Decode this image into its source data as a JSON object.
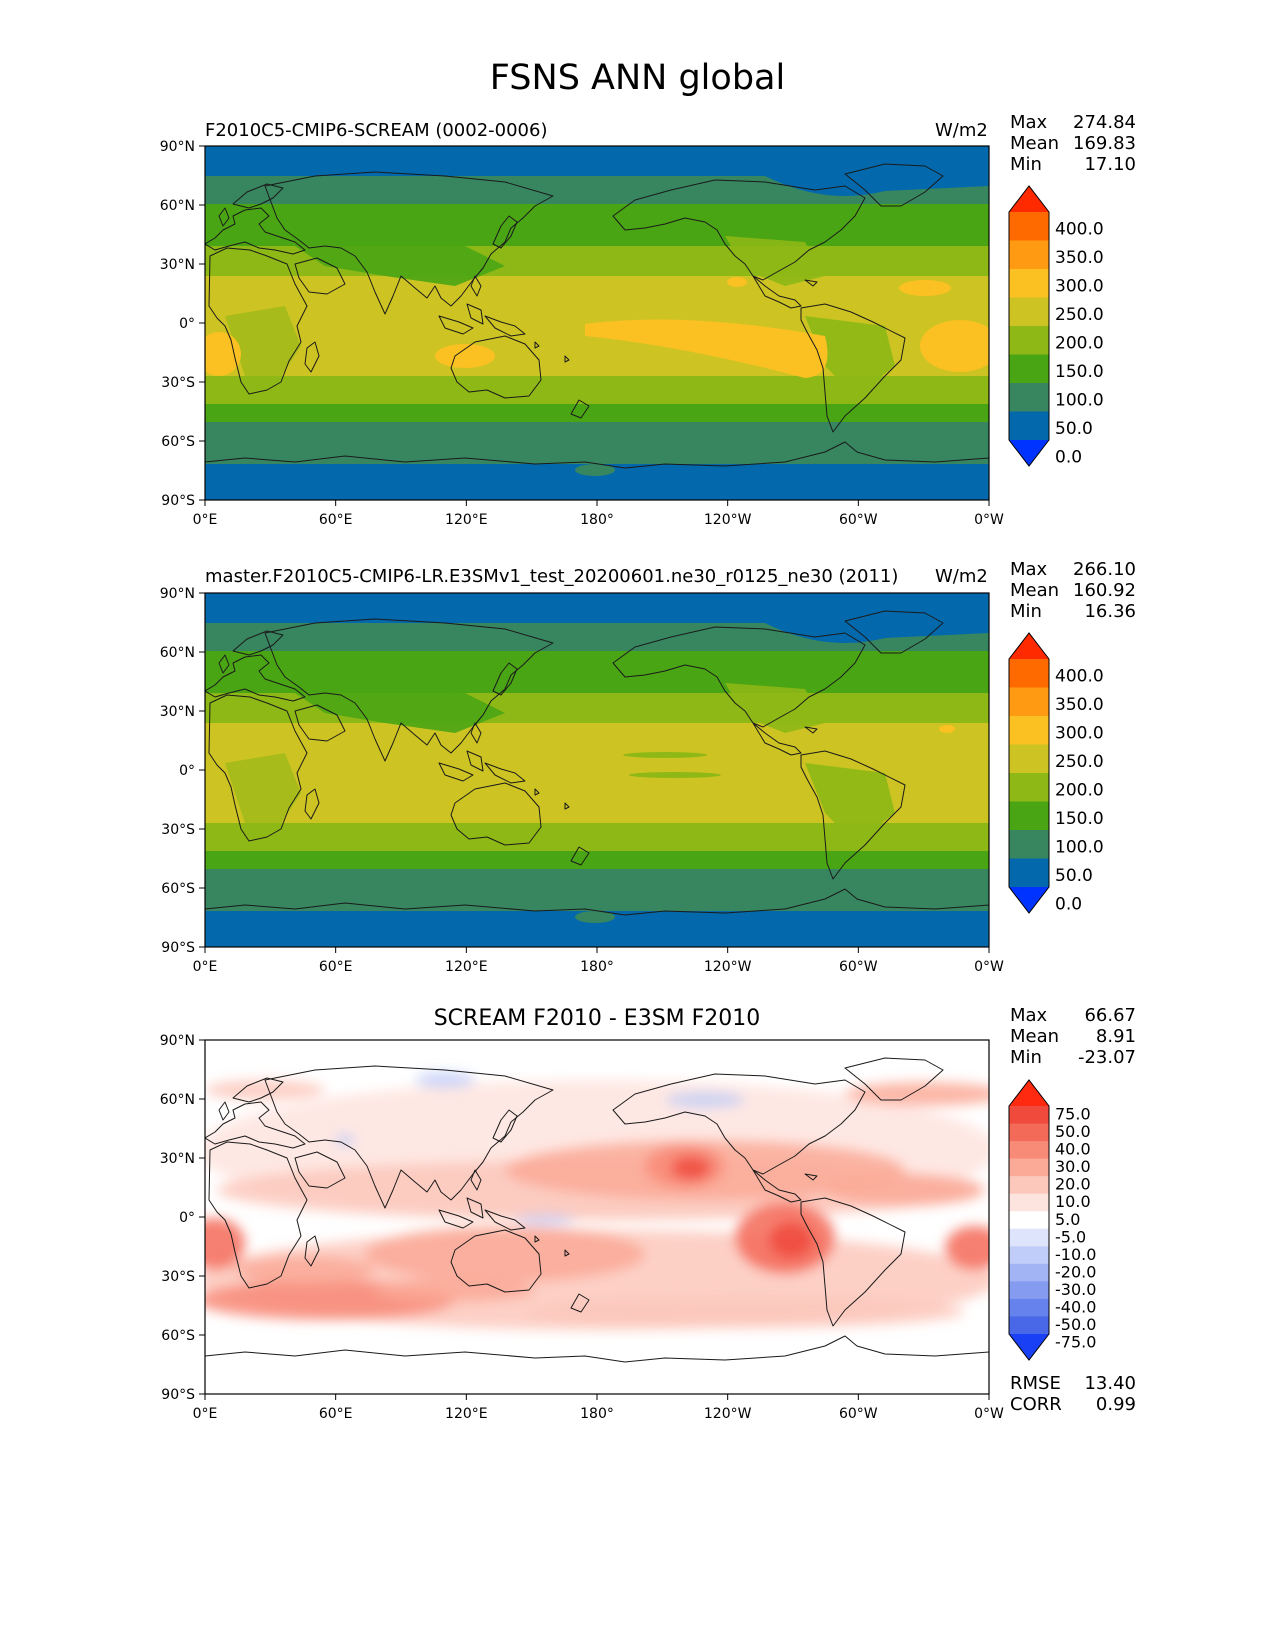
{
  "figure_title": "FSNS ANN global",
  "panels": [
    {
      "title": "F2010C5-CMIP6-SCREAM (0002-0006)",
      "units": "W/m2",
      "stats": {
        "max_label": "Max",
        "max": "274.84",
        "mean_label": "Mean",
        "mean": "169.83",
        "min_label": "Min",
        "min": "17.10"
      },
      "colorbar": {
        "levels": [
          "400.0",
          "350.0",
          "300.0",
          "250.0",
          "200.0",
          "150.0",
          "100.0",
          "50.0",
          "0.0"
        ],
        "colors": [
          "#ff2a00",
          "#ff6a00",
          "#ff9a12",
          "#fbc021",
          "#cdc423",
          "#8db816",
          "#4aa514",
          "#378660",
          "#0369ac",
          "#0033ff"
        ]
      }
    },
    {
      "title": "master.F2010C5-CMIP6-LR.E3SMv1_test_20200601.ne30_r0125_ne30 (2011)",
      "units": "W/m2",
      "stats": {
        "max_label": "Max",
        "max": "266.10",
        "mean_label": "Mean",
        "mean": "160.92",
        "min_label": "Min",
        "min": "16.36"
      },
      "colorbar": {
        "levels": [
          "400.0",
          "350.0",
          "300.0",
          "250.0",
          "200.0",
          "150.0",
          "100.0",
          "50.0",
          "0.0"
        ],
        "colors": [
          "#ff2a00",
          "#ff6a00",
          "#ff9a12",
          "#fbc021",
          "#cdc423",
          "#8db816",
          "#4aa514",
          "#378660",
          "#0369ac",
          "#0033ff"
        ]
      }
    },
    {
      "title": "SCREAM F2010 - E3SM F2010",
      "units": "",
      "stats": {
        "max_label": "Max",
        "max": "66.67",
        "mean_label": "Mean",
        "mean": "8.91",
        "min_label": "Min",
        "min": "-23.07"
      },
      "colorbar": {
        "levels": [
          "75.0",
          "50.0",
          "40.0",
          "30.0",
          "20.0",
          "10.0",
          "5.0",
          "-5.0",
          "-10.0",
          "-20.0",
          "-30.0",
          "-40.0",
          "-50.0",
          "-75.0"
        ],
        "colors": [
          "#ff2a10",
          "#f04a3c",
          "#f46a58",
          "#f88a78",
          "#fbaa98",
          "#fdc8bc",
          "#fee4de",
          "#ffffff",
          "#dde4fb",
          "#c0cdf8",
          "#a2b4f4",
          "#849bf0",
          "#6682ec",
          "#4868e8",
          "#1a40f5"
        ]
      },
      "rmse_label": "RMSE",
      "rmse": "13.40",
      "corr_label": "CORR",
      "corr": "0.99"
    }
  ],
  "axes": {
    "lat_ticks": [
      "90°N",
      "60°N",
      "30°N",
      "0°",
      "30°S",
      "60°S",
      "90°S"
    ],
    "lon_ticks": [
      "0°E",
      "60°E",
      "120°E",
      "180°",
      "120°W",
      "60°W",
      "0°W"
    ]
  }
}
